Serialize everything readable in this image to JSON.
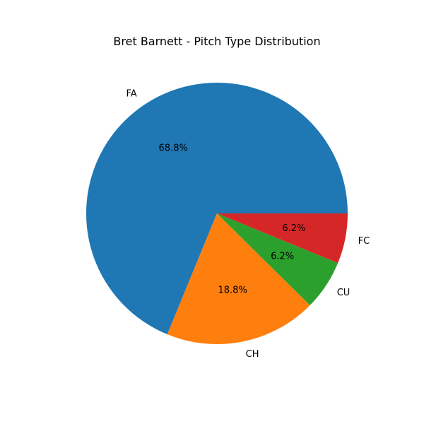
{
  "chart_data": {
    "type": "pie",
    "title": "Bret Barnett - Pitch Type Distribution",
    "slices": [
      {
        "label": "FA",
        "value": 68.8,
        "pct_label": "68.8%",
        "color": "#1f77b4"
      },
      {
        "label": "CH",
        "value": 18.8,
        "pct_label": "18.8%",
        "color": "#ff7f0e"
      },
      {
        "label": "CU",
        "value": 6.2,
        "pct_label": "6.2%",
        "color": "#2ca02c"
      },
      {
        "label": "FC",
        "value": 6.2,
        "pct_label": "6.2%",
        "color": "#d62728"
      }
    ],
    "start_angle_deg": 0,
    "direction": "counterclockwise",
    "legend": "none",
    "grid": false
  }
}
